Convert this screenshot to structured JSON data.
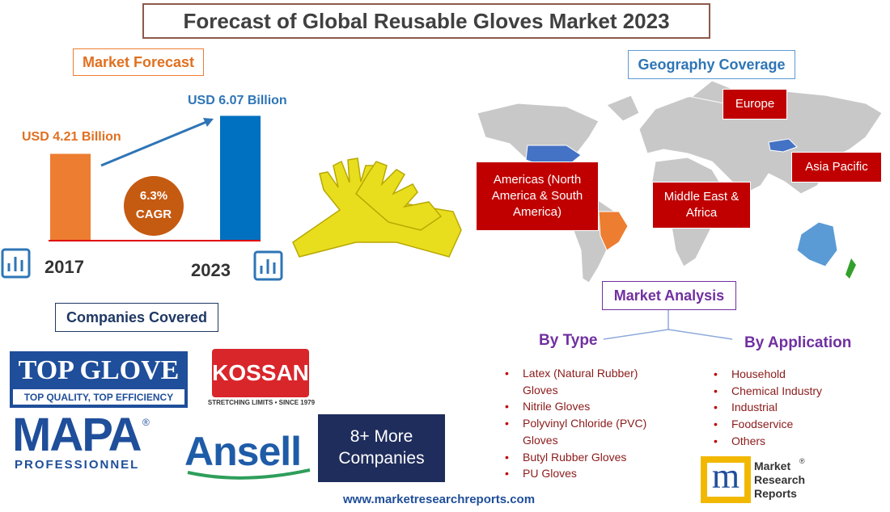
{
  "title": "Forecast of Global Reusable Gloves Market 2023",
  "market_forecast": {
    "heading": "Market Forecast",
    "categories": [
      "2017",
      "2023"
    ],
    "values": [
      4.21,
      6.07
    ],
    "value_labels": [
      "USD 4.21 Billion",
      "USD 6.07 Billion"
    ],
    "colors": [
      "#ed7d31",
      "#0070c0"
    ],
    "cagr_value": "6.3%",
    "cagr_label": "CAGR"
  },
  "geography": {
    "heading": "Geography Coverage",
    "regions": [
      "Europe",
      "Americas (North America & South America)",
      "Middle East & Africa",
      "Asia Pacific"
    ]
  },
  "market_analysis": {
    "heading": "Market Analysis",
    "by_type": {
      "heading": "By Type",
      "items": [
        "Latex (Natural Rubber) Gloves",
        "Nitrile Gloves",
        "Polyvinyl Chloride (PVC) Gloves",
        "Butyl Rubber Gloves",
        "PU Gloves"
      ]
    },
    "by_application": {
      "heading": "By Application",
      "items": [
        "Household",
        "Chemical Industry",
        "Industrial",
        "Foodservice",
        "Others"
      ]
    }
  },
  "companies": {
    "heading": "Companies Covered",
    "top_glove": {
      "name": "TOP GLOVE",
      "tagline": "TOP QUALITY, TOP EFFICIENCY"
    },
    "kossan": {
      "name": "KOSSAN",
      "tagline": "STRETCHING LIMITS • SINCE 1979"
    },
    "mapa": {
      "name": "MAPA",
      "mark": "®",
      "sub": "PROFESSIONNEL"
    },
    "ansell": {
      "name": "Ansell"
    },
    "more": "8+ More Companies"
  },
  "publisher": {
    "initial": "m",
    "lines": [
      "Market",
      "Research",
      "Reports"
    ],
    "mark": "®"
  },
  "url": "www.marketresearchreports.com"
}
